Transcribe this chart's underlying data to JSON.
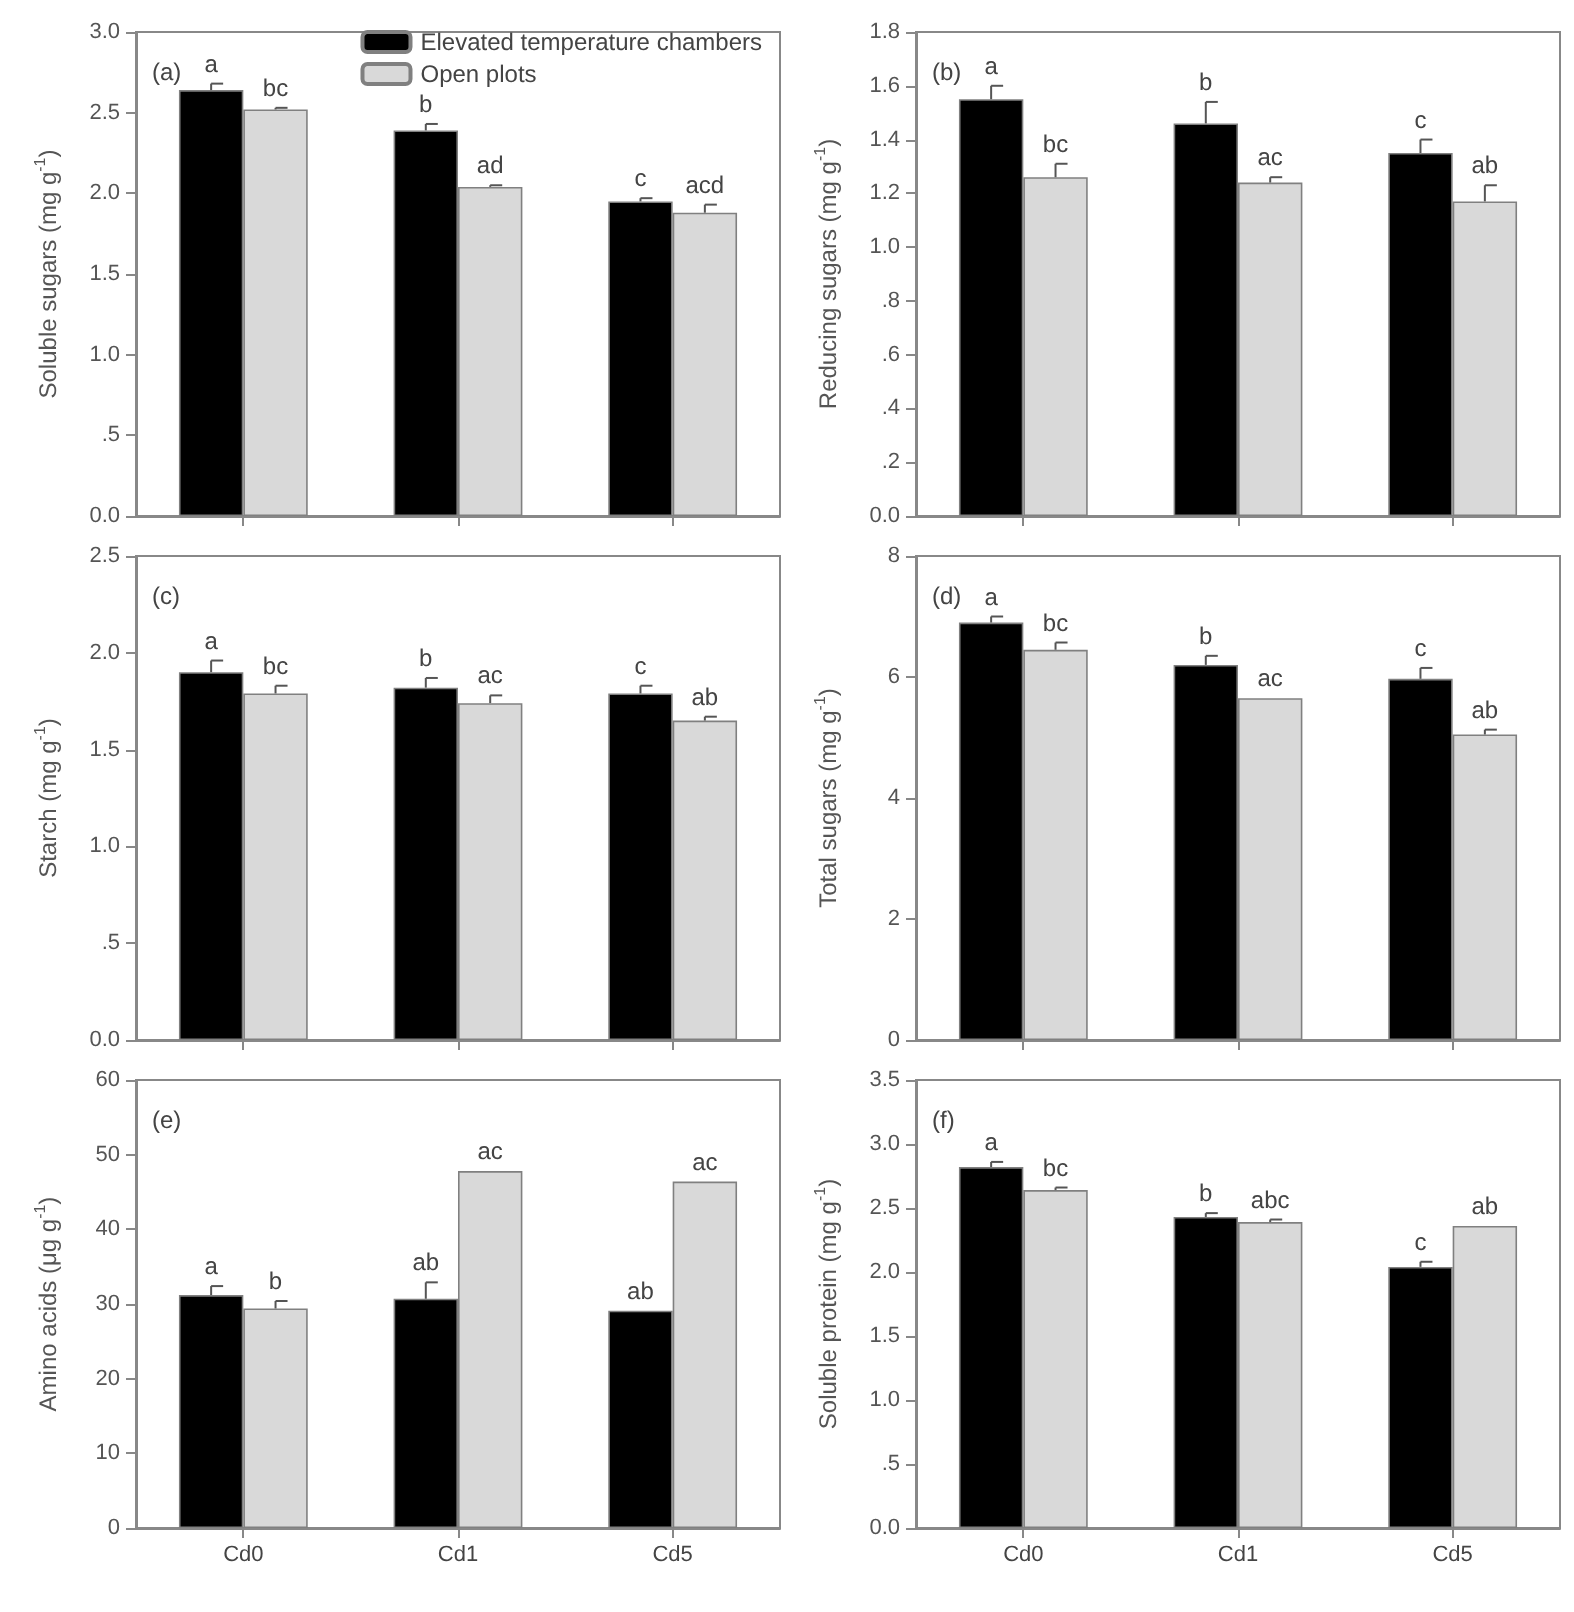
{
  "chart_data": [
    {
      "type": "bar",
      "ylabel": "Soluble sugars (mg g$^{-1}$)",
      "annotations": [
        "(a)"
      ],
      "categories": [
        null,
        null,
        null
      ],
      "tick_labels": "y",
      "legend": "top right",
      "ylim": [
        0,
        3
      ],
      "yticks": [
        {
          "value": 0,
          "label": "0.0"
        },
        {
          "value": 0.5,
          "label": ".5"
        },
        {
          "value": 1,
          "label": "1.0"
        },
        {
          "value": 1.5,
          "label": "1.5"
        },
        {
          "value": 2,
          "label": "2.0"
        },
        {
          "value": 2.5,
          "label": "2.5"
        },
        {
          "value": 3,
          "label": "3.0"
        }
      ],
      "series": [
        {
          "name": "Elevated temperature chambers",
          "color": "#000000",
          "values": [
            2.64,
            2.39,
            1.95
          ],
          "errors": [
            0.04,
            0.04,
            0.02
          ],
          "value_labels": [
            "a",
            "b",
            "c"
          ]
        },
        {
          "name": "Open plots",
          "color": "#d9d9d9",
          "values": [
            2.52,
            2.04,
            1.88
          ],
          "errors": [
            0.01,
            0.01,
            0.05
          ],
          "value_labels": [
            "bc",
            "ad",
            "acd"
          ]
        }
      ]
    },
    {
      "type": "bar",
      "ylabel": "Reducing sugars (mg g$^{-1}$)",
      "annotations": [
        "(b)"
      ],
      "categories": [
        null,
        null,
        null
      ],
      "tick_labels": "y",
      "ylim": [
        0,
        1.8
      ],
      "yticks": [
        {
          "value": 0,
          "label": "0.0"
        },
        {
          "value": 0.2,
          "label": ".2"
        },
        {
          "value": 0.4,
          "label": ".4"
        },
        {
          "value": 0.6,
          "label": ".6"
        },
        {
          "value": 0.8,
          "label": ".8"
        },
        {
          "value": 1,
          "label": "1.0"
        },
        {
          "value": 1.2,
          "label": "1.2"
        },
        {
          "value": 1.4,
          "label": "1.4"
        },
        {
          "value": 1.6,
          "label": "1.6"
        },
        {
          "value": 1.8,
          "label": "1.8"
        }
      ],
      "series": [
        {
          "color": "#000000",
          "values": [
            1.55,
            1.46,
            1.35
          ],
          "errors": [
            0.05,
            0.08,
            0.05
          ],
          "value_labels": [
            "a",
            "b",
            "c"
          ]
        },
        {
          "color": "#d9d9d9",
          "values": [
            1.26,
            1.24,
            1.17
          ],
          "errors": [
            0.05,
            0.02,
            0.06
          ],
          "value_labels": [
            "bc",
            "ac",
            "ab"
          ]
        }
      ]
    },
    {
      "type": "bar",
      "ylabel": "Starch (mg g$^{-1}$)",
      "annotations": [
        "(c)"
      ],
      "categories": [
        null,
        null,
        null
      ],
      "tick_labels": "y",
      "ylim": [
        0,
        2.5
      ],
      "yticks": [
        {
          "value": 0,
          "label": "0.0"
        },
        {
          "value": 0.5,
          "label": ".5"
        },
        {
          "value": 1,
          "label": "1.0"
        },
        {
          "value": 1.5,
          "label": "1.5"
        },
        {
          "value": 2,
          "label": "2.0"
        },
        {
          "value": 2.5,
          "label": "2.5"
        }
      ],
      "series": [
        {
          "color": "#000000",
          "values": [
            1.9,
            1.82,
            1.79
          ],
          "errors": [
            0.06,
            0.05,
            0.04
          ],
          "value_labels": [
            "a",
            "b",
            "c"
          ]
        },
        {
          "color": "#d9d9d9",
          "values": [
            1.79,
            1.74,
            1.65
          ],
          "errors": [
            0.04,
            0.04,
            0.02
          ],
          "value_labels": [
            "bc",
            "ac",
            "ab"
          ]
        }
      ]
    },
    {
      "type": "bar",
      "ylabel": "Total sugars (mg g$^{-1}$)",
      "annotations": [
        "(d)"
      ],
      "categories": [
        null,
        null,
        null
      ],
      "tick_labels": "y",
      "ylim": [
        0,
        8
      ],
      "yticks": [
        0,
        2,
        4,
        6,
        8
      ],
      "series": [
        {
          "color": "#000000",
          "values": [
            6.9,
            6.2,
            5.97
          ],
          "errors": [
            0.1,
            0.15,
            0.18
          ],
          "value_labels": [
            "a",
            "b",
            "c"
          ]
        },
        {
          "color": "#d9d9d9",
          "values": [
            6.45,
            5.65,
            5.05
          ],
          "errors": [
            0.12,
            null,
            0.08
          ],
          "value_labels": [
            "bc",
            "ac",
            "ab"
          ]
        }
      ]
    },
    {
      "type": "bar",
      "ylabel": "Amino acids (μg g$^{-1}$)",
      "annotations": [
        "(e)"
      ],
      "categories": [
        "Cd0",
        "Cd1",
        "Cd5"
      ],
      "ylim": [
        0,
        60
      ],
      "yticks": [
        0,
        10,
        20,
        30,
        40,
        50,
        60
      ],
      "series": [
        {
          "color": "#000000",
          "values": [
            31.2,
            30.7,
            29.1
          ],
          "errors": [
            1.2,
            2.2,
            null
          ],
          "value_labels": [
            "a",
            "ab",
            "ab"
          ]
        },
        {
          "color": "#d9d9d9",
          "values": [
            29.4,
            47.8,
            46.4
          ],
          "errors": [
            1,
            null,
            null
          ],
          "value_labels": [
            "b",
            "ac",
            "ac"
          ]
        }
      ]
    },
    {
      "type": "bar",
      "ylabel": "Soluble protein (mg g$^{-1}$)",
      "annotations": [
        "(f)"
      ],
      "categories": [
        "Cd0",
        "Cd1",
        "Cd5"
      ],
      "ylim": [
        0,
        3.5
      ],
      "yticks": [
        {
          "value": 0,
          "label": "0.0"
        },
        {
          "value": 0.5,
          "label": ".5"
        },
        {
          "value": 1,
          "label": "1.0"
        },
        {
          "value": 1.5,
          "label": "1.5"
        },
        {
          "value": 2,
          "label": "2.0"
        },
        {
          "value": 2.5,
          "label": "2.5"
        },
        {
          "value": 3,
          "label": "3.0"
        },
        {
          "value": 3.5,
          "label": "3.5"
        }
      ],
      "series": [
        {
          "color": "#000000",
          "values": [
            2.82,
            2.43,
            2.04
          ],
          "errors": [
            0.04,
            0.03,
            0.04
          ],
          "value_labels": [
            "a",
            "b",
            "c"
          ]
        },
        {
          "color": "#d9d9d9",
          "values": [
            2.64,
            2.39,
            2.36
          ],
          "errors": [
            0.02,
            0.02,
            null
          ],
          "value_labels": [
            "bc",
            "abc",
            "ab"
          ]
        }
      ]
    }
  ]
}
